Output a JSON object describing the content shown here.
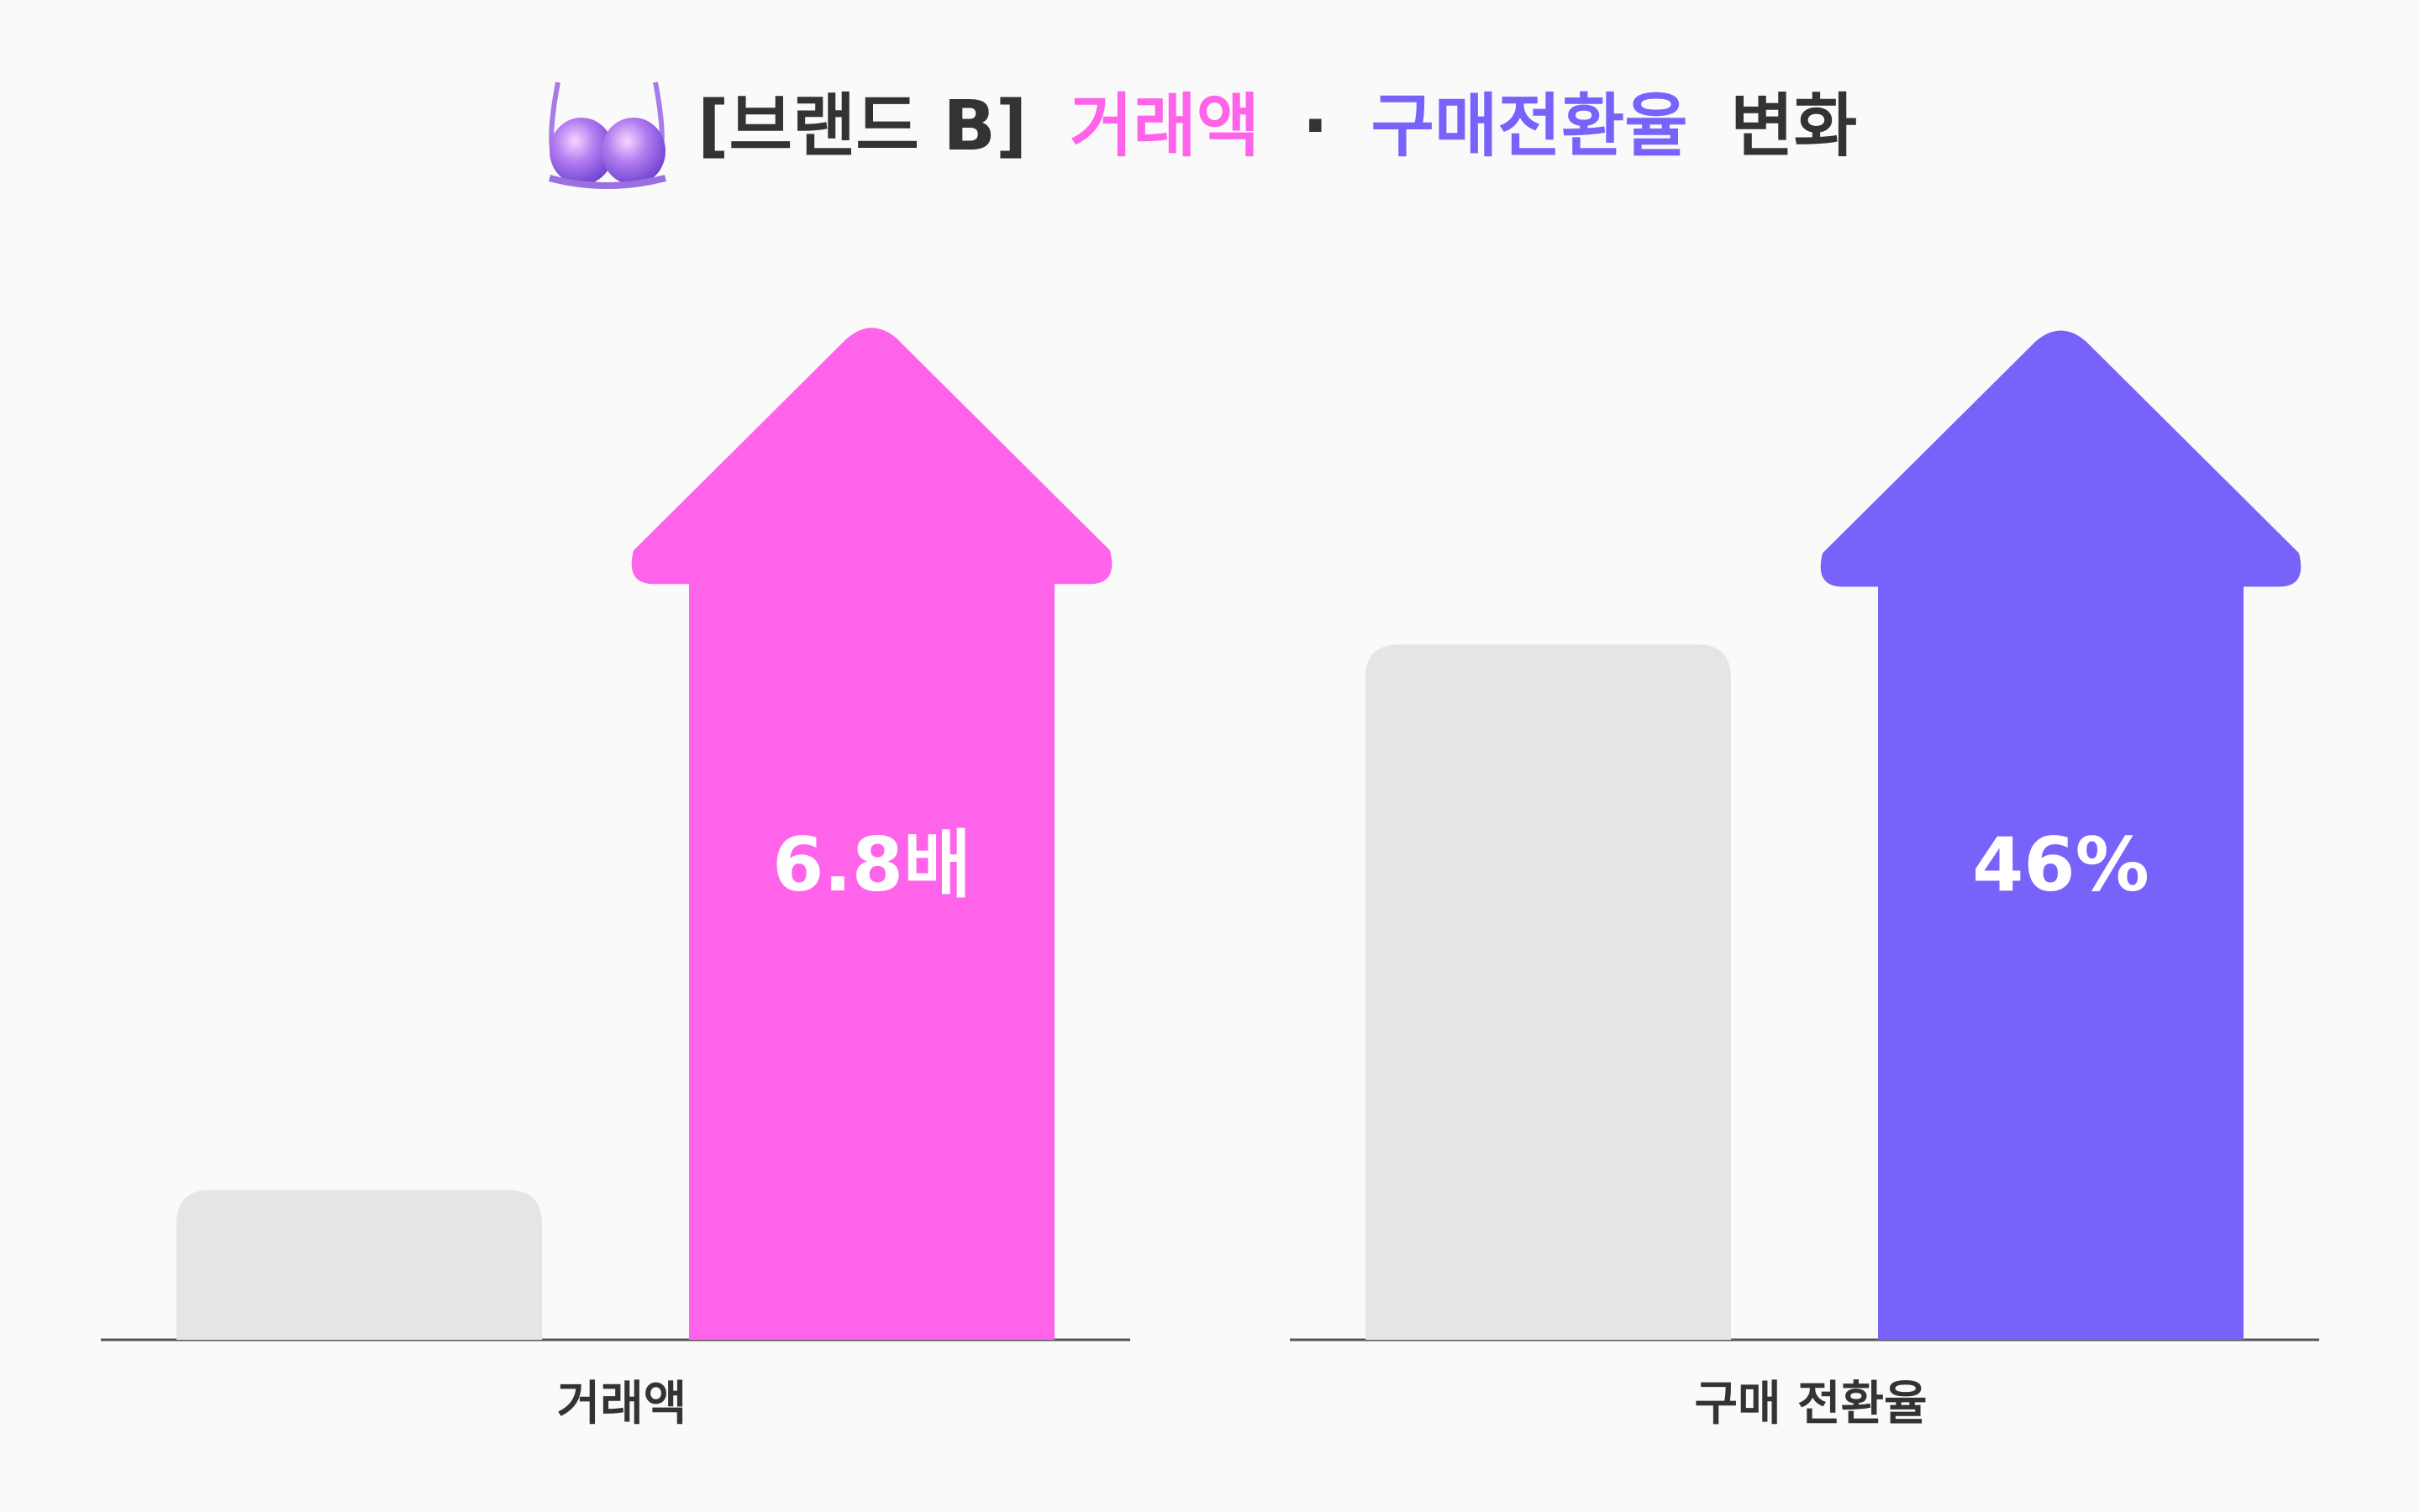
{
  "title": {
    "icon": "bra-icon",
    "prefix": "[브랜드 B]",
    "part1": "거래액",
    "separator": "·",
    "part2": "구매전환율",
    "suffix": "변화",
    "colors": {
      "prefix": "#333333",
      "part1": "#ff63e9",
      "part2": "#7863fa",
      "suffix": "#333333"
    }
  },
  "chart_data": [
    {
      "type": "bar",
      "category_label": "거래액",
      "bars": [
        {
          "name": "before",
          "value": 1,
          "label": "",
          "color": "#e4e5e7"
        },
        {
          "name": "after",
          "value": 6.8,
          "label": "6.8배",
          "color": "#ff63e9"
        }
      ],
      "ylim": [
        0,
        7.2
      ]
    },
    {
      "type": "bar",
      "category_label": "구매 전환율",
      "bars": [
        {
          "name": "before",
          "value": 1,
          "label": "",
          "color": "#e4e5e7"
        },
        {
          "name": "after",
          "value": 1.46,
          "label": "46%",
          "color": "#7863fa"
        }
      ],
      "ylim": [
        0,
        1.55
      ]
    }
  ],
  "colors": {
    "background": "#fafafa",
    "baseline": "#555555",
    "label_text": "#333333",
    "value_text": "#ffffff"
  }
}
